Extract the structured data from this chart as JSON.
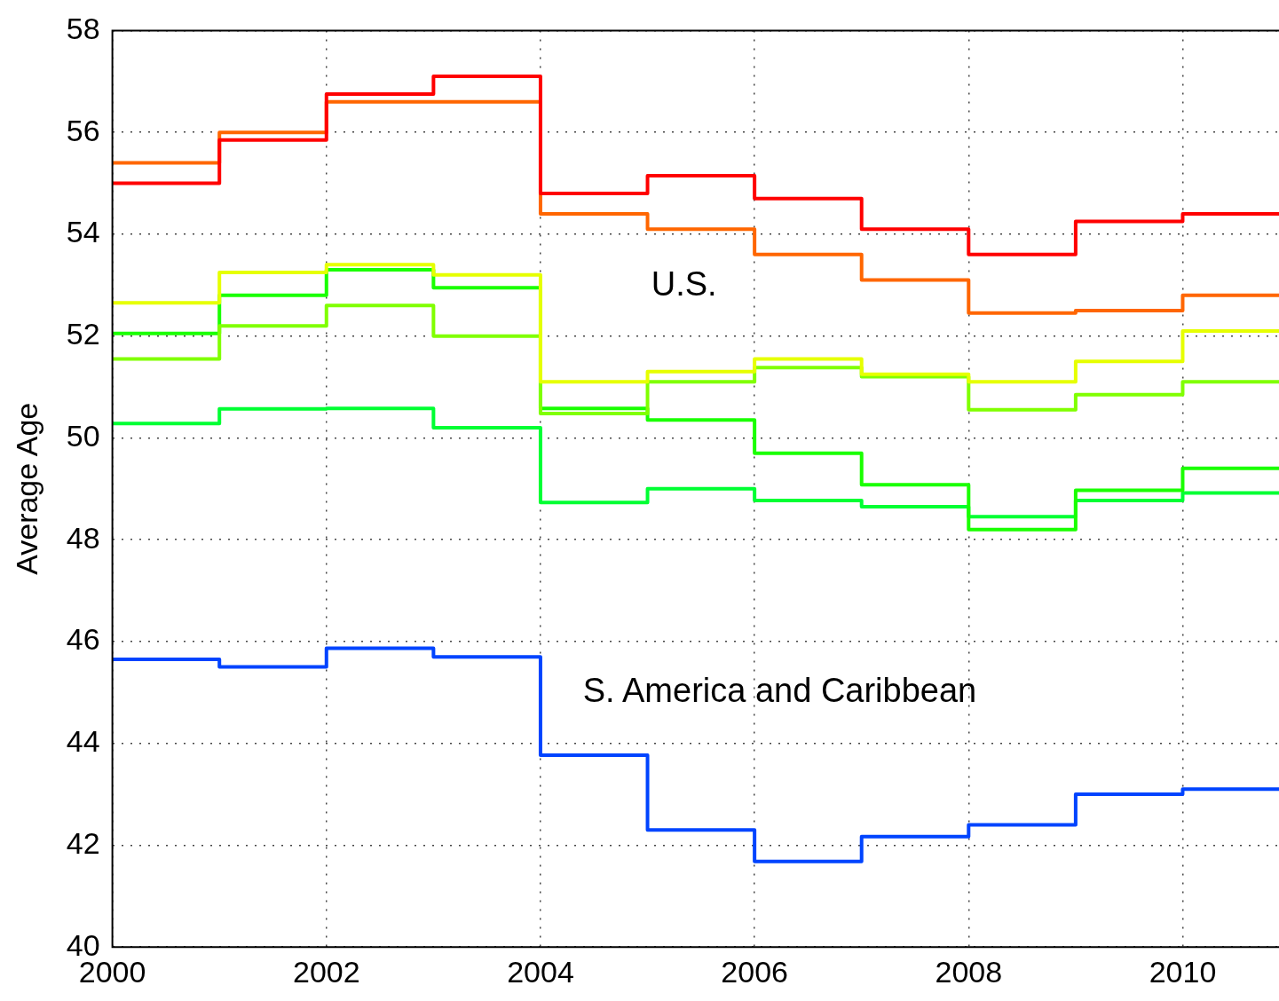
{
  "chart_data": {
    "type": "step",
    "ylabel": "Average Age",
    "x": [
      2000,
      2001,
      2002,
      2003,
      2004,
      2005,
      2006,
      2007,
      2008,
      2009,
      2010
    ],
    "series": [
      {
        "color": "#ff0000",
        "values": [
          55.0,
          55.85,
          56.75,
          57.1,
          54.8,
          55.15,
          54.7,
          54.1,
          53.6,
          54.25,
          54.4
        ]
      },
      {
        "color": "#ff6600",
        "values": [
          55.4,
          56.0,
          56.6,
          56.6,
          54.4,
          54.1,
          53.6,
          53.1,
          52.45,
          52.5,
          52.8
        ]
      },
      {
        "color": "#e6ff00",
        "values": [
          52.65,
          53.25,
          53.4,
          53.2,
          51.1,
          51.3,
          51.55,
          51.25,
          51.1,
          51.5,
          52.1
        ]
      },
      {
        "color": "#80ff00",
        "values": [
          51.55,
          52.2,
          52.6,
          52.0,
          50.48,
          51.1,
          51.38,
          51.2,
          50.55,
          50.85,
          51.1
        ]
      },
      {
        "color": "#1aff00",
        "values": [
          52.05,
          52.8,
          53.3,
          52.95,
          50.58,
          50.35,
          49.7,
          49.08,
          48.2,
          48.97,
          49.4
        ]
      },
      {
        "color": "#00ff33",
        "values": [
          50.28,
          50.57,
          50.58,
          50.2,
          48.73,
          49.0,
          48.77,
          48.65,
          48.45,
          48.77,
          48.92
        ]
      },
      {
        "color": "#0044ff",
        "values": [
          45.65,
          45.5,
          45.87,
          45.7,
          43.77,
          42.3,
          41.68,
          42.17,
          42.4,
          43.0,
          43.1
        ]
      }
    ],
    "xlim": [
      2000,
      2010.9
    ],
    "xticks": [
      2000,
      2002,
      2004,
      2006,
      2008,
      2010
    ],
    "ylim": [
      40,
      58
    ],
    "yticks": [
      40,
      42,
      44,
      46,
      48,
      50,
      52,
      54,
      56,
      58
    ],
    "grid": true,
    "legend": false,
    "annotations": [
      "U.S.",
      "S. America and Caribbean"
    ]
  }
}
